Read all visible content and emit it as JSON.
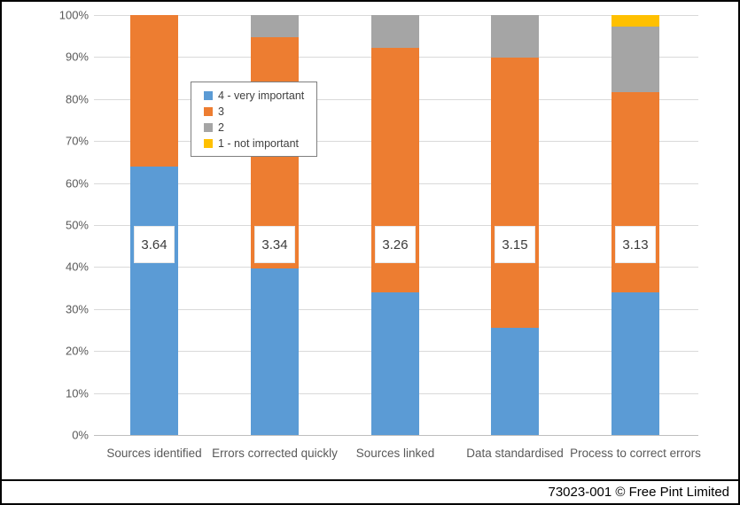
{
  "footer": {
    "credit": "73023-001 © Free Pint Limited"
  },
  "colors": {
    "blue": "#5B9BD5",
    "orange": "#ED7D31",
    "gray": "#A5A5A5",
    "yellow": "#FFC000",
    "gridline": "#D9D9D9",
    "axis_text": "#595959",
    "legend_border": "#7F7F7F"
  },
  "chart_data": {
    "type": "bar",
    "subtype": "100%-stacked-column",
    "categories": [
      "Sources identified",
      "Errors corrected quickly",
      "Sources linked",
      "Data standardised",
      "Process to correct errors"
    ],
    "series": [
      {
        "name": "4 - very important",
        "color": "#5B9BD5",
        "values": [
          64.0,
          39.6,
          34.0,
          25.6,
          34.0
        ]
      },
      {
        "name": "3",
        "color": "#ED7D31",
        "values": [
          36.0,
          55.2,
          58.2,
          64.2,
          47.7
        ]
      },
      {
        "name": "2",
        "color": "#A5A5A5",
        "values": [
          0.0,
          5.2,
          7.8,
          10.2,
          15.6
        ]
      },
      {
        "name": "1 - not important",
        "color": "#FFC000",
        "values": [
          0.0,
          0.0,
          0.0,
          0.0,
          2.7
        ]
      }
    ],
    "bar_value_labels": [
      "3.64",
      "3.34",
      "3.26",
      "3.15",
      "3.13"
    ],
    "y_tick_labels": [
      "0%",
      "10%",
      "20%",
      "30%",
      "40%",
      "50%",
      "60%",
      "70%",
      "80%",
      "90%",
      "100%"
    ],
    "ylim": [
      0,
      100
    ],
    "grid": true,
    "legend_position": "inside-upper-left",
    "title": "",
    "xlabel": "",
    "ylabel": ""
  }
}
